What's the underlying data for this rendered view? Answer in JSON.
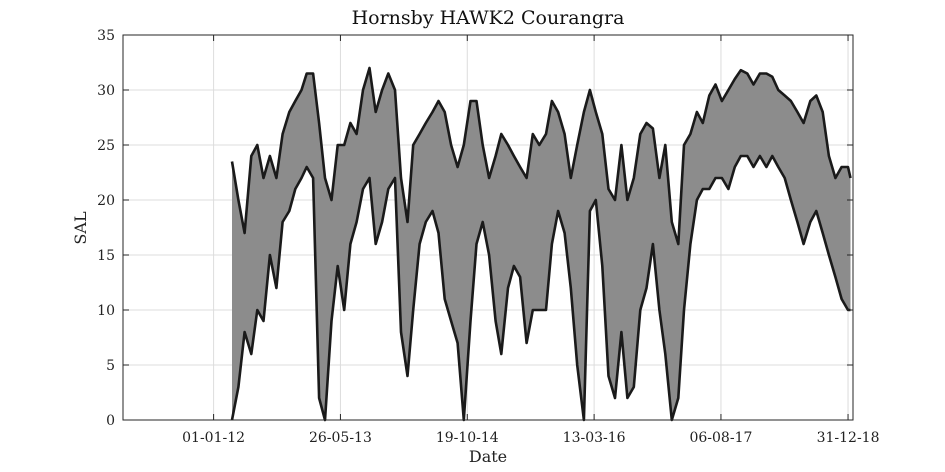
{
  "chart_data": {
    "type": "line",
    "title": "Hornsby HAWK2 Courangra",
    "xlabel": "Date",
    "ylabel": "SAL",
    "xlim": [
      "2011-01-01",
      "2019-01-20"
    ],
    "ylim": [
      0,
      35
    ],
    "yticks": [
      0,
      5,
      10,
      15,
      20,
      25,
      30,
      35
    ],
    "xticks": [
      {
        "date": "2012-01-01",
        "label": "01-01-12"
      },
      {
        "date": "2013-05-26",
        "label": "26-05-13"
      },
      {
        "date": "2014-10-19",
        "label": "19-10-14"
      },
      {
        "date": "2016-03-13",
        "label": "13-03-16"
      },
      {
        "date": "2017-08-06",
        "label": "06-08-17"
      },
      {
        "date": "2018-12-31",
        "label": "31-12-18"
      }
    ],
    "grid": true,
    "legend": "none",
    "colors": {
      "band_fill": "#8c8c8c",
      "envelope": "#1a1a1a",
      "grid": "#dcdcdc"
    },
    "series": [
      {
        "x": [
          "2012-03-15",
          "2012-04-10",
          "2012-05-05",
          "2012-06-01",
          "2012-06-25",
          "2012-07-20",
          "2012-08-15",
          "2012-09-10",
          "2012-10-05",
          "2012-11-01",
          "2012-11-25",
          "2012-12-20",
          "2013-01-10",
          "2013-02-05",
          "2013-03-01",
          "2013-03-25",
          "2013-04-20",
          "2013-05-15",
          "2013-06-10",
          "2013-07-05",
          "2013-07-30",
          "2013-08-25",
          "2013-09-20",
          "2013-10-15",
          "2013-11-10",
          "2013-12-05",
          "2014-01-01",
          "2014-01-25",
          "2014-02-20",
          "2014-03-15",
          "2014-04-10",
          "2014-05-05",
          "2014-06-01",
          "2014-06-25",
          "2014-07-20",
          "2014-08-15",
          "2014-09-10",
          "2014-10-05",
          "2014-11-01",
          "2014-11-25",
          "2014-12-20",
          "2015-01-15",
          "2015-02-10",
          "2015-03-05",
          "2015-04-01",
          "2015-04-25",
          "2015-05-20",
          "2015-06-15",
          "2015-07-10",
          "2015-08-05",
          "2015-09-01",
          "2015-09-25",
          "2015-10-20",
          "2015-11-15",
          "2015-12-10",
          "2016-01-05",
          "2016-02-01",
          "2016-02-25",
          "2016-03-20",
          "2016-04-15",
          "2016-05-10",
          "2016-06-05",
          "2016-07-01",
          "2016-07-25",
          "2016-08-20",
          "2016-09-15",
          "2016-10-10",
          "2016-11-05",
          "2016-12-01",
          "2016-12-25",
          "2017-01-20",
          "2017-02-15",
          "2017-03-10",
          "2017-04-05",
          "2017-05-01",
          "2017-05-25",
          "2017-06-20",
          "2017-07-15",
          "2017-08-10",
          "2017-09-05",
          "2017-10-01",
          "2017-10-25",
          "2017-11-20",
          "2017-12-15",
          "2018-01-10",
          "2018-02-05",
          "2018-03-01",
          "2018-03-25",
          "2018-04-20",
          "2018-05-15",
          "2018-06-10",
          "2018-07-05",
          "2018-08-01",
          "2018-08-25",
          "2018-09-20",
          "2018-10-15",
          "2018-11-10",
          "2018-12-05",
          "2018-12-31",
          "2019-01-10"
        ],
        "upper": [
          23.5,
          20,
          17,
          24,
          25,
          22,
          24,
          22,
          26,
          28,
          29,
          30,
          31.5,
          31.5,
          27,
          22,
          20,
          25,
          25,
          27,
          26,
          30,
          32,
          28,
          30,
          31.5,
          30,
          22,
          18,
          25,
          26,
          27,
          28,
          29,
          28,
          25,
          23,
          25,
          29,
          29,
          25,
          22,
          24,
          26,
          25,
          24,
          23,
          22,
          26,
          25,
          26,
          29,
          28,
          26,
          22,
          25,
          28,
          30,
          28,
          26,
          21,
          20,
          25,
          20,
          22,
          26,
          27,
          26.5,
          22,
          25,
          18,
          16,
          25,
          26,
          28,
          27,
          29.5,
          30.5,
          29,
          30,
          31,
          31.8,
          31.5,
          30.5,
          31.5,
          31.5,
          31.2,
          30,
          29.5,
          29,
          28,
          27,
          29,
          29.5,
          28,
          24,
          22,
          23,
          23,
          22
        ],
        "lower": [
          0,
          3,
          8,
          6,
          10,
          9,
          15,
          12,
          18,
          19,
          21,
          22,
          23,
          22,
          2,
          0,
          9,
          14,
          10,
          16,
          18,
          21,
          22,
          16,
          18,
          21,
          22,
          8,
          4,
          10,
          16,
          18,
          19,
          17,
          11,
          9,
          7,
          0,
          9,
          16,
          18,
          15,
          9,
          6,
          12,
          14,
          13,
          7,
          10,
          10,
          10,
          16,
          19,
          17,
          12,
          5,
          0,
          19,
          20,
          14,
          4,
          2,
          8,
          2,
          3,
          10,
          12,
          16,
          10,
          6,
          0,
          2,
          10,
          16,
          20,
          21,
          21,
          22,
          22,
          21,
          23,
          24,
          24,
          23,
          24,
          23,
          24,
          23,
          22,
          20,
          18,
          16,
          18,
          19,
          17,
          15,
          13,
          11,
          10,
          10
        ]
      }
    ]
  }
}
